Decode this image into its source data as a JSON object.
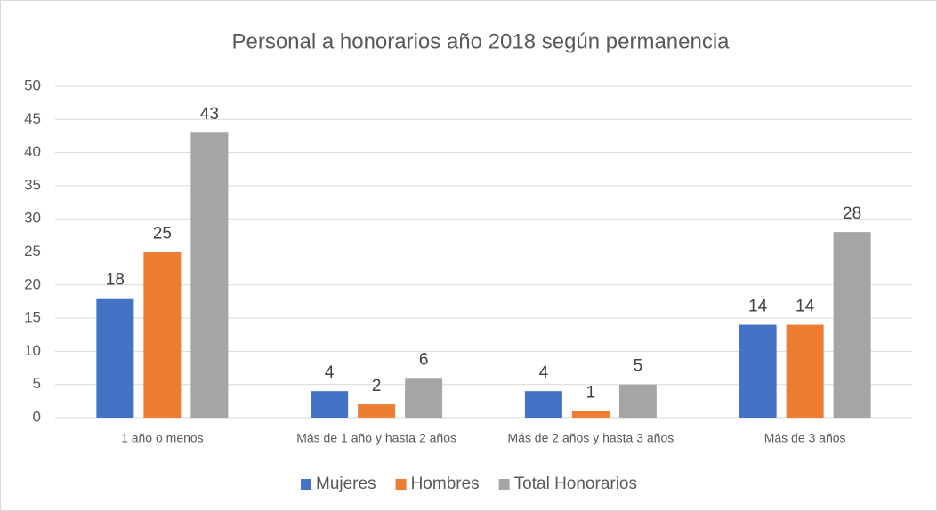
{
  "chart_data": {
    "type": "bar",
    "title": "Personal a honorarios año 2018 según permanencia",
    "categories": [
      "1 año o menos",
      "Más de 1 año y hasta 2 años",
      "Más de 2 años y hasta 3 años",
      "Más de 3 años"
    ],
    "series": [
      {
        "name": "Mujeres",
        "color": "#4472c4",
        "values": [
          18,
          4,
          4,
          14
        ]
      },
      {
        "name": "Hombres",
        "color": "#ed7d31",
        "values": [
          25,
          2,
          1,
          14
        ]
      },
      {
        "name": "Total Honorarios",
        "color": "#a5a5a5",
        "values": [
          43,
          6,
          5,
          28
        ]
      }
    ],
    "ylim": [
      0,
      50
    ],
    "yticks": [
      0,
      5,
      10,
      15,
      20,
      25,
      30,
      35,
      40,
      45,
      50
    ],
    "grid": true,
    "legend": "bottom"
  }
}
